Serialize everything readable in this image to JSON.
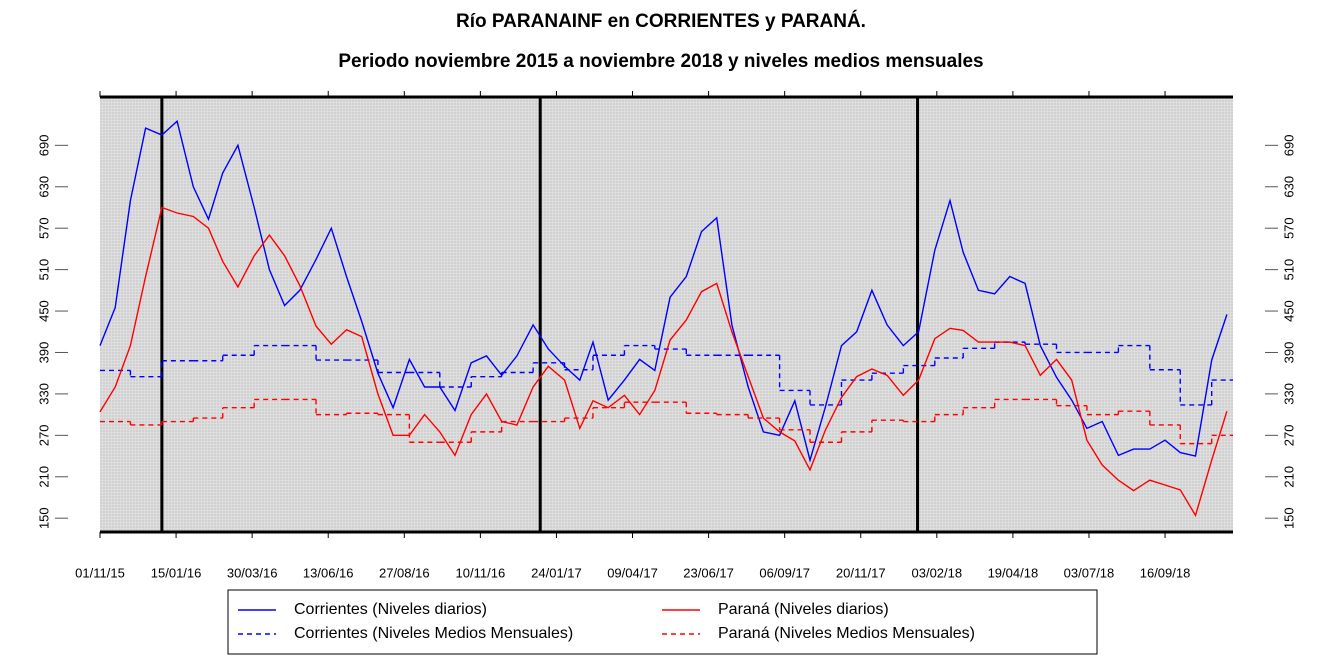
{
  "chart_data": {
    "type": "line",
    "title": "Río PARANAINF en CORRIENTES y PARANÁ.",
    "subtitle": "Periodo noviembre 2015 a noviembre 2018 y niveles medios mensuales",
    "xlim": [
      "2015-11-01",
      "2018-11-22"
    ],
    "ylim": [
      130,
      760
    ],
    "yticks": [
      150,
      210,
      270,
      330,
      390,
      450,
      510,
      570,
      630,
      690
    ],
    "xticks": [
      {
        "value": "2015-11-01",
        "label": "01/11/15"
      },
      {
        "value": "2016-01-15",
        "label": "15/01/16"
      },
      {
        "value": "2016-03-30",
        "label": "30/03/16"
      },
      {
        "value": "2016-06-13",
        "label": "13/06/16"
      },
      {
        "value": "2016-08-27",
        "label": "27/08/16"
      },
      {
        "value": "2016-11-10",
        "label": "10/11/16"
      },
      {
        "value": "2017-01-24",
        "label": "24/01/17"
      },
      {
        "value": "2017-04-09",
        "label": "09/04/17"
      },
      {
        "value": "2017-06-23",
        "label": "23/06/17"
      },
      {
        "value": "2017-09-06",
        "label": "06/09/17"
      },
      {
        "value": "2017-11-20",
        "label": "20/11/17"
      },
      {
        "value": "2018-02-03",
        "label": "03/02/18"
      },
      {
        "value": "2018-04-19",
        "label": "19/04/18"
      },
      {
        "value": "2018-07-03",
        "label": "03/07/18"
      },
      {
        "value": "2018-09-16",
        "label": "16/09/18"
      }
    ],
    "vlines": [
      "2016-01-01",
      "2017-01-08",
      "2018-01-15"
    ],
    "series": [
      {
        "name": "Corrientes (Niveles diarios)",
        "color": "#0000ff",
        "style": "solid",
        "x": [
          "2015-11-01",
          "2015-11-16",
          "2015-12-01",
          "2015-12-16",
          "2016-01-01",
          "2016-01-16",
          "2016-02-01",
          "2016-02-16",
          "2016-03-01",
          "2016-03-16",
          "2016-04-01",
          "2016-04-16",
          "2016-05-01",
          "2016-05-16",
          "2016-06-01",
          "2016-06-16",
          "2016-07-01",
          "2016-07-16",
          "2016-08-01",
          "2016-08-16",
          "2016-09-01",
          "2016-09-16",
          "2016-10-01",
          "2016-10-16",
          "2016-11-01",
          "2016-11-16",
          "2016-12-01",
          "2016-12-16",
          "2017-01-01",
          "2017-01-16",
          "2017-02-01",
          "2017-02-16",
          "2017-03-01",
          "2017-03-16",
          "2017-04-01",
          "2017-04-16",
          "2017-05-01",
          "2017-05-16",
          "2017-06-01",
          "2017-06-16",
          "2017-07-01",
          "2017-07-16",
          "2017-08-01",
          "2017-08-16",
          "2017-09-01",
          "2017-09-16",
          "2017-10-01",
          "2017-10-16",
          "2017-11-01",
          "2017-11-16",
          "2017-12-01",
          "2017-12-16",
          "2018-01-01",
          "2018-01-16",
          "2018-02-01",
          "2018-02-16",
          "2018-03-01",
          "2018-03-16",
          "2018-04-01",
          "2018-04-16",
          "2018-05-01",
          "2018-05-16",
          "2018-06-01",
          "2018-06-16",
          "2018-07-01",
          "2018-07-16",
          "2018-08-01",
          "2018-08-16",
          "2018-09-01",
          "2018-09-16",
          "2018-10-01",
          "2018-10-16",
          "2018-11-01",
          "2018-11-16"
        ],
        "values": [
          400,
          455,
          610,
          715,
          705,
          725,
          630,
          583,
          650,
          690,
          600,
          510,
          458,
          480,
          525,
          570,
          500,
          435,
          360,
          310,
          380,
          340,
          340,
          306,
          375,
          385,
          357,
          385,
          430,
          395,
          370,
          350,
          405,
          321,
          350,
          380,
          364,
          470,
          500,
          565,
          585,
          430,
          340,
          275,
          270,
          320,
          234,
          310,
          400,
          420,
          480,
          430,
          400,
          420,
          538,
          610,
          535,
          480,
          475,
          500,
          490,
          400,
          354,
          321,
          280,
          290,
          241,
          250,
          250,
          263,
          245,
          240,
          379,
          445
        ]
      },
      {
        "name": "Corrientes (Niveles Medios Mensuales)",
        "color": "#0000ff",
        "style": "step",
        "x": [
          "2015-11-01",
          "2015-12-01",
          "2016-01-01",
          "2016-02-01",
          "2016-03-01",
          "2016-04-01",
          "2016-05-01",
          "2016-06-01",
          "2016-07-01",
          "2016-08-01",
          "2016-09-01",
          "2016-10-01",
          "2016-11-01",
          "2016-12-01",
          "2017-01-01",
          "2017-02-01",
          "2017-03-01",
          "2017-04-01",
          "2017-05-01",
          "2017-06-01",
          "2017-07-01",
          "2017-08-01",
          "2017-09-01",
          "2017-10-01",
          "2017-11-01",
          "2017-12-01",
          "2018-01-01",
          "2018-02-01",
          "2018-03-01",
          "2018-04-01",
          "2018-05-01",
          "2018-06-01",
          "2018-07-01",
          "2018-08-01",
          "2018-09-01",
          "2018-10-01",
          "2018-11-01"
        ],
        "values": [
          364,
          355,
          378,
          378,
          386,
          400,
          400,
          379,
          379,
          361,
          361,
          340,
          355,
          361,
          375,
          365,
          386,
          400,
          395,
          386,
          386,
          386,
          335,
          314,
          350,
          360,
          371,
          382,
          396,
          405,
          402,
          390,
          390,
          400,
          365,
          314,
          350
        ]
      },
      {
        "name": "Paraná (Niveles diarios)",
        "color": "#ff0000",
        "style": "solid",
        "x": [
          "2015-11-01",
          "2015-11-16",
          "2015-12-01",
          "2015-12-16",
          "2016-01-01",
          "2016-01-16",
          "2016-02-01",
          "2016-02-16",
          "2016-03-01",
          "2016-03-16",
          "2016-04-01",
          "2016-04-16",
          "2016-05-01",
          "2016-05-16",
          "2016-06-01",
          "2016-06-16",
          "2016-07-01",
          "2016-07-16",
          "2016-08-01",
          "2016-08-16",
          "2016-09-01",
          "2016-09-16",
          "2016-10-01",
          "2016-10-16",
          "2016-11-01",
          "2016-11-16",
          "2016-12-01",
          "2016-12-16",
          "2017-01-01",
          "2017-01-16",
          "2017-02-01",
          "2017-02-16",
          "2017-03-01",
          "2017-03-16",
          "2017-04-01",
          "2017-04-16",
          "2017-05-01",
          "2017-05-16",
          "2017-06-01",
          "2017-06-16",
          "2017-07-01",
          "2017-07-16",
          "2017-08-01",
          "2017-08-16",
          "2017-09-01",
          "2017-09-16",
          "2017-10-01",
          "2017-10-16",
          "2017-11-01",
          "2017-11-16",
          "2017-12-01",
          "2017-12-16",
          "2018-01-01",
          "2018-01-16",
          "2018-02-01",
          "2018-02-16",
          "2018-03-01",
          "2018-03-16",
          "2018-04-01",
          "2018-04-16",
          "2018-05-01",
          "2018-05-16",
          "2018-06-01",
          "2018-06-16",
          "2018-07-01",
          "2018-07-16",
          "2018-08-01",
          "2018-08-16",
          "2018-09-01",
          "2018-09-16",
          "2018-10-01",
          "2018-10-16",
          "2018-11-01",
          "2018-11-16"
        ],
        "values": [
          304,
          340,
          400,
          500,
          600,
          592,
          587,
          570,
          522,
          485,
          530,
          560,
          530,
          487,
          428,
          402,
          423,
          413,
          330,
          270,
          270,
          300,
          275,
          241,
          300,
          330,
          290,
          285,
          340,
          370,
          350,
          280,
          320,
          310,
          328,
          300,
          335,
          408,
          437,
          478,
          490,
          420,
          355,
          295,
          275,
          262,
          220,
          277,
          325,
          355,
          366,
          357,
          328,
          350,
          410,
          425,
          422,
          405,
          405,
          405,
          400,
          357,
          380,
          350,
          263,
          227,
          205,
          190,
          205,
          198,
          191,
          154,
          234,
          305
        ]
      },
      {
        "name": "Paraná (Niveles Medios Mensuales)",
        "color": "#ff0000",
        "style": "step",
        "x": [
          "2015-11-01",
          "2015-12-01",
          "2016-01-01",
          "2016-02-01",
          "2016-03-01",
          "2016-04-01",
          "2016-05-01",
          "2016-06-01",
          "2016-07-01",
          "2016-08-01",
          "2016-09-01",
          "2016-10-01",
          "2016-11-01",
          "2016-12-01",
          "2017-01-01",
          "2017-02-01",
          "2017-03-01",
          "2017-04-01",
          "2017-05-01",
          "2017-06-01",
          "2017-07-01",
          "2017-08-01",
          "2017-09-01",
          "2017-10-01",
          "2017-11-01",
          "2017-12-01",
          "2018-01-01",
          "2018-02-01",
          "2018-03-01",
          "2018-04-01",
          "2018-05-01",
          "2018-06-01",
          "2018-07-01",
          "2018-08-01",
          "2018-09-01",
          "2018-10-01",
          "2018-11-01"
        ],
        "values": [
          290,
          285,
          290,
          295,
          310,
          322,
          322,
          300,
          302,
          300,
          260,
          260,
          275,
          290,
          290,
          295,
          310,
          318,
          318,
          302,
          300,
          295,
          278,
          260,
          275,
          292,
          290,
          300,
          310,
          322,
          322,
          313,
          300,
          305,
          285,
          258,
          270
        ]
      }
    ]
  }
}
